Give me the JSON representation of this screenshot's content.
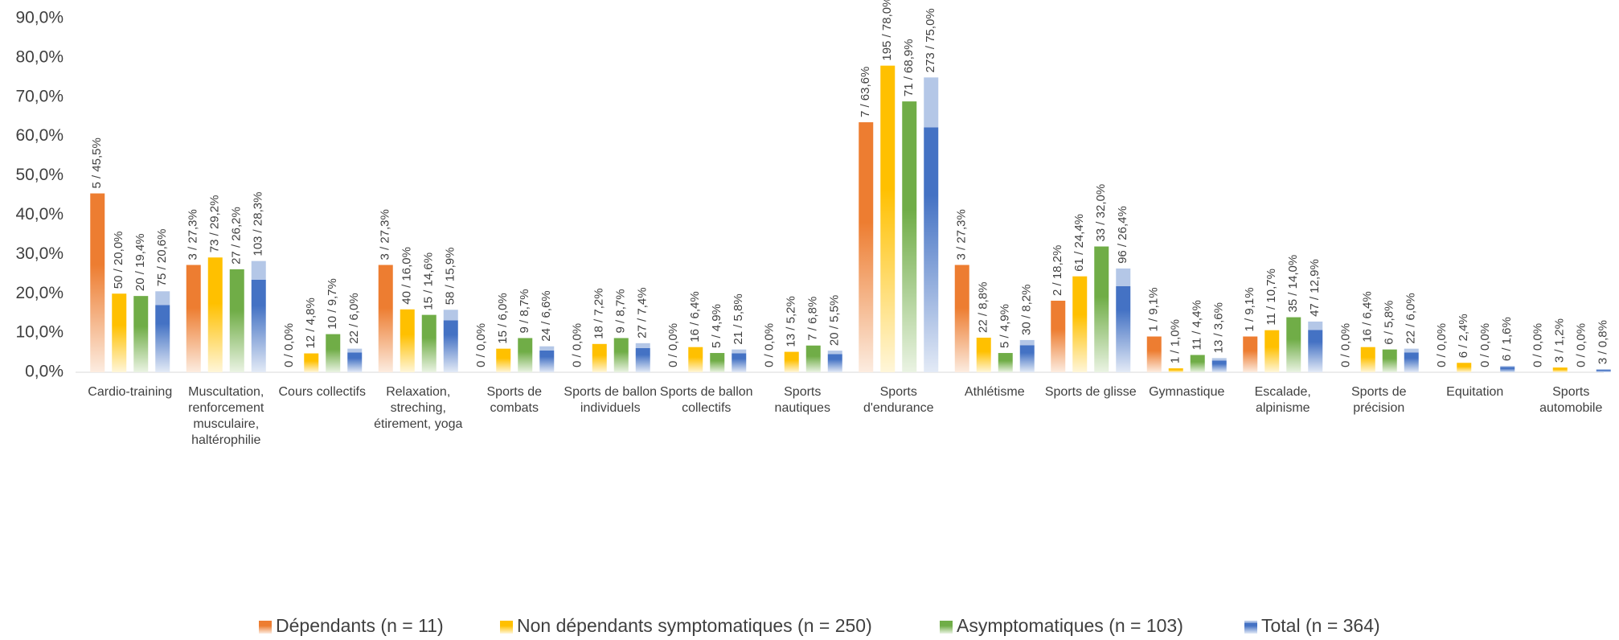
{
  "chart_data": {
    "type": "bar",
    "categories": [
      "Cardio-training",
      "Muscultation, renforcement musculaire, haltérophilie",
      "Cours collectifs",
      "Relaxation, streching, étirement, yoga",
      "Sports de combats",
      "Sports de ballon individuels",
      "Sports de ballon collectifs",
      "Sports nautiques",
      "Sports d'endurance",
      "Athlétisme",
      "Sports de glisse",
      "Gymnastique",
      "Escalade, alpinisme",
      "Sports de précision",
      "Equitation",
      "Sports automobile"
    ],
    "series": [
      {
        "name": "Dépendants (n = 11)",
        "color": "#ed7d31",
        "values": [
          45.5,
          27.3,
          0.0,
          27.3,
          0.0,
          0.0,
          0.0,
          0.0,
          63.6,
          27.3,
          18.2,
          9.1,
          9.1,
          0.0,
          0.0,
          0.0
        ],
        "value_labels": [
          "5 / 45,5%",
          "3 / 27,3%",
          "0 / 0,0%",
          "3 / 27,3%",
          "0 / 0,0%",
          "0 / 0,0%",
          "0 / 0,0%",
          "0 / 0,0%",
          "7 / 63,6%",
          "3 / 27,3%",
          "2 / 18,2%",
          "1 / 9,1%",
          "1 / 9,1%",
          "0 / 0,0%",
          "0 / 0,0%",
          "0 / 0,0%"
        ]
      },
      {
        "name": "Non dépendants symptomatiques (n = 250)",
        "color": "#ffc000",
        "values": [
          20.0,
          29.2,
          4.8,
          16.0,
          6.0,
          7.2,
          6.4,
          5.2,
          78.0,
          8.8,
          24.4,
          1.0,
          10.7,
          6.4,
          2.4,
          1.2
        ],
        "value_labels": [
          "50 / 20,0%",
          "73 / 29,2%",
          "12 / 4,8%",
          "40 / 16,0%",
          "15 / 6,0%",
          "18 / 7,2%",
          "16 / 6,4%",
          "13 / 5,2%",
          "195 / 78,0%",
          "22 / 8,8%",
          "61 / 24,4%",
          "1 / 1,0%",
          "11 / 10,7%",
          "16 / 6,4%",
          "6 / 2,4%",
          "3 / 1,2%"
        ]
      },
      {
        "name": "Asymptomatiques (n = 103)",
        "color": "#70ad47",
        "values": [
          19.4,
          26.2,
          9.7,
          14.6,
          8.7,
          8.7,
          4.9,
          6.8,
          68.9,
          4.9,
          32.0,
          4.4,
          14.0,
          5.8,
          0.0,
          0.0
        ],
        "value_labels": [
          "20 / 19,4%",
          "27 / 26,2%",
          "10 / 9,7%",
          "15 / 14,6%",
          "9 / 8,7%",
          "9 / 8,7%",
          "5 / 4,9%",
          "7 / 6,8%",
          "71 / 68,9%",
          "5 / 4,9%",
          "33 / 32,0%",
          "11 / 4,4%",
          "35 / 14,0%",
          "6 / 5,8%",
          "0 / 0,0%",
          "0 / 0,0%"
        ]
      },
      {
        "name": "Total (n = 364)",
        "color": "#4472c4",
        "values": [
          20.6,
          28.3,
          6.0,
          15.9,
          6.6,
          7.4,
          5.8,
          5.5,
          75.0,
          8.2,
          26.4,
          3.6,
          12.9,
          6.0,
          1.6,
          0.8
        ],
        "value_labels": [
          "75 / 20,6%",
          "103 / 28,3%",
          "22 / 6,0%",
          "58 / 15,9%",
          "24 / 6,6%",
          "27 / 7,4%",
          "21 / 5,8%",
          "20 / 5,5%",
          "273 / 75,0%",
          "30 / 8,2%",
          "96 / 26,4%",
          "13 / 3,6%",
          "47 / 12,9%",
          "22 / 6,0%",
          "6 / 1,6%",
          "3 / 0,8%"
        ]
      }
    ],
    "ylim": [
      0,
      94.7
    ],
    "yticks": [
      {
        "value": 0,
        "label": "0,0%"
      },
      {
        "value": 10,
        "label": "10,0%"
      },
      {
        "value": 20,
        "label": "20,0%"
      },
      {
        "value": 30,
        "label": "30,0%"
      },
      {
        "value": 40,
        "label": "40,0%"
      },
      {
        "value": 50,
        "label": "50,0%"
      },
      {
        "value": 60,
        "label": "60,0%"
      },
      {
        "value": 70,
        "label": "70,0%"
      },
      {
        "value": 80,
        "label": "80,0%"
      },
      {
        "value": 90,
        "label": "90,0%"
      }
    ],
    "grid": false,
    "legend": "bottom"
  }
}
